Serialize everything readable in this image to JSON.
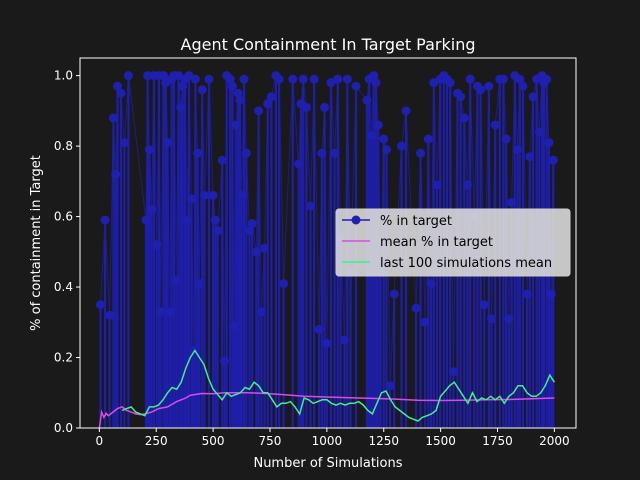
{
  "chart_data": {
    "type": "line",
    "title": "Agent Containment In Target Parking",
    "xlabel": "Number of Simulations",
    "ylabel": "% of containment in Target",
    "xlim": [
      -85,
      2095
    ],
    "ylim": [
      0,
      1.05
    ],
    "xticks": [
      0,
      250,
      500,
      750,
      1000,
      1250,
      1500,
      1750,
      2000
    ],
    "yticks": [
      0.0,
      0.2,
      0.4,
      0.6,
      0.8,
      1.0
    ],
    "xtick_labels": [
      "0",
      "250",
      "500",
      "750",
      "1000",
      "1250",
      "1500",
      "1750",
      "2000"
    ],
    "ytick_labels": [
      "0.0",
      "0.2",
      "0.4",
      "0.6",
      "0.8",
      "1.0"
    ],
    "legend": {
      "position": "center-right"
    },
    "colors": {
      "background": "#1a1a1a",
      "axes": "#1a1a1a",
      "text": "#ffffff",
      "legend_bg": "#d9d9d9"
    },
    "series": [
      {
        "name": "% in target",
        "style": "stem-markers",
        "color": "#1f1fb0",
        "x": [
          5,
          25,
          45,
          62,
          72,
          80,
          95,
          110,
          128,
          205,
          212,
          220,
          230,
          240,
          252,
          262,
          270,
          282,
          292,
          300,
          310,
          318,
          328,
          338,
          348,
          358,
          366,
          376,
          386,
          394,
          405,
          414,
          422,
          432,
          440,
          452,
          462,
          482,
          500,
          510,
          520,
          540,
          550,
          560,
          575,
          585,
          592,
          600,
          610,
          618,
          626,
          636,
          646,
          660,
          672,
          690,
          700,
          712,
          726,
          740,
          756,
          776,
          790,
          810,
          850,
          876,
          886,
          896,
          910,
          928,
          944,
          966,
          978,
          990,
          1000,
          1018,
          1034,
          1048,
          1060,
          1078,
          1090,
          1104,
          1128,
          1176,
          1186,
          1196,
          1206,
          1216,
          1226,
          1236,
          1250,
          1262,
          1278,
          1296,
          1328,
          1348,
          1392,
          1412,
          1432,
          1446,
          1458,
          1470,
          1484,
          1498,
          1514,
          1528,
          1542,
          1556,
          1574,
          1588,
          1604,
          1618,
          1630,
          1648,
          1662,
          1676,
          1692,
          1712,
          1724,
          1740,
          1760,
          1776,
          1788,
          1800,
          1812,
          1826,
          1838,
          1848,
          1862,
          1880,
          1892,
          1906,
          1922,
          1934,
          1946,
          1954,
          1966,
          1976,
          1986,
          1995
        ],
        "values": [
          0.35,
          0.59,
          0.32,
          0.88,
          0.72,
          0.97,
          0.95,
          0.81,
          1.0,
          0.59,
          1.0,
          0.79,
          0.62,
          1.0,
          0.52,
          1.0,
          0.33,
          1.0,
          0.98,
          0.81,
          0.33,
          0.99,
          1.0,
          0.42,
          1.0,
          0.91,
          0.97,
          0.99,
          0.59,
          1.0,
          0.65,
          0.22,
          0.99,
          0.78,
          0.41,
          0.96,
          0.66,
          0.99,
          0.66,
          0.59,
          0.56,
          0.76,
          0.19,
          1.0,
          0.99,
          0.97,
          0.29,
          0.86,
          0.95,
          0.93,
          0.66,
          0.99,
          0.78,
          0.56,
          0.58,
          0.5,
          0.9,
          0.33,
          0.51,
          0.92,
          0.94,
          1.0,
          0.99,
          0.41,
          0.99,
          0.75,
          0.92,
          0.99,
          0.91,
          0.63,
          0.99,
          0.28,
          0.78,
          0.91,
          0.24,
          0.98,
          0.78,
          0.99,
          0.54,
          0.25,
          0.99,
          0.44,
          0.97,
          0.93,
          0.99,
          0.83,
          1.0,
          0.98,
          0.86,
          0.44,
          0.82,
          0.79,
          0.12,
          0.38,
          0.8,
          0.9,
          0.34,
          0.78,
          0.3,
          0.82,
          0.41,
          0.98,
          0.69,
          0.99,
          1.0,
          0.99,
          0.98,
          0.16,
          0.95,
          0.94,
          0.88,
          0.69,
          0.99,
          0.6,
          0.97,
          0.96,
          0.35,
          0.97,
          0.31,
          0.86,
          0.99,
          0.99,
          0.82,
          0.31,
          0.64,
          1.0,
          0.79,
          0.99,
          0.97,
          0.38,
          0.77,
          0.94,
          0.99,
          0.84,
          1.0,
          0.98,
          0.99,
          0.81,
          0.38,
          0.76
        ]
      },
      {
        "name": "mean % in target",
        "style": "line",
        "color": "#d84be8",
        "x": [
          0,
          10,
          20,
          30,
          40,
          60,
          80,
          100,
          120,
          140,
          160,
          180,
          200,
          230,
          260,
          300,
          340,
          380,
          400,
          450,
          500,
          550,
          600,
          650,
          700,
          750,
          800,
          900,
          1000,
          1100,
          1200,
          1300,
          1400,
          1500,
          1600,
          1700,
          1800,
          1900,
          2000
        ],
        "values": [
          0.0,
          0.045,
          0.03,
          0.042,
          0.035,
          0.045,
          0.055,
          0.06,
          0.05,
          0.045,
          0.04,
          0.038,
          0.04,
          0.045,
          0.055,
          0.06,
          0.075,
          0.085,
          0.093,
          0.098,
          0.097,
          0.1,
          0.1,
          0.1,
          0.099,
          0.097,
          0.095,
          0.09,
          0.088,
          0.086,
          0.084,
          0.082,
          0.079,
          0.078,
          0.079,
          0.08,
          0.081,
          0.083,
          0.085
        ]
      },
      {
        "name": "last 100 simulations mean",
        "style": "line",
        "color": "#3ff08a",
        "x": [
          100,
          120,
          140,
          160,
          180,
          200,
          220,
          240,
          260,
          280,
          300,
          320,
          340,
          360,
          380,
          400,
          420,
          440,
          460,
          480,
          500,
          520,
          540,
          560,
          580,
          600,
          620,
          640,
          660,
          680,
          700,
          720,
          740,
          760,
          780,
          800,
          820,
          840,
          860,
          880,
          900,
          920,
          940,
          960,
          980,
          1000,
          1020,
          1040,
          1060,
          1080,
          1100,
          1120,
          1140,
          1160,
          1180,
          1200,
          1220,
          1240,
          1260,
          1280,
          1300,
          1320,
          1340,
          1360,
          1380,
          1400,
          1420,
          1440,
          1460,
          1480,
          1500,
          1520,
          1540,
          1560,
          1580,
          1600,
          1620,
          1640,
          1660,
          1680,
          1700,
          1720,
          1740,
          1760,
          1780,
          1800,
          1820,
          1840,
          1860,
          1880,
          1900,
          1920,
          1940,
          1960,
          1980,
          2000
        ],
        "values": [
          0.05,
          0.055,
          0.06,
          0.045,
          0.04,
          0.035,
          0.06,
          0.06,
          0.065,
          0.08,
          0.1,
          0.115,
          0.11,
          0.13,
          0.17,
          0.2,
          0.22,
          0.2,
          0.18,
          0.14,
          0.11,
          0.095,
          0.08,
          0.1,
          0.09,
          0.095,
          0.1,
          0.115,
          0.11,
          0.13,
          0.12,
          0.1,
          0.1,
          0.08,
          0.06,
          0.07,
          0.07,
          0.075,
          0.06,
          0.04,
          0.085,
          0.08,
          0.07,
          0.075,
          0.08,
          0.08,
          0.07,
          0.065,
          0.07,
          0.065,
          0.07,
          0.07,
          0.075,
          0.065,
          0.05,
          0.04,
          0.07,
          0.1,
          0.105,
          0.08,
          0.06,
          0.05,
          0.04,
          0.03,
          0.025,
          0.02,
          0.03,
          0.035,
          0.04,
          0.05,
          0.09,
          0.105,
          0.12,
          0.13,
          0.11,
          0.09,
          0.07,
          0.1,
          0.075,
          0.085,
          0.08,
          0.09,
          0.08,
          0.09,
          0.07,
          0.09,
          0.1,
          0.12,
          0.12,
          0.1,
          0.09,
          0.09,
          0.1,
          0.12,
          0.15,
          0.13
        ]
      }
    ]
  }
}
